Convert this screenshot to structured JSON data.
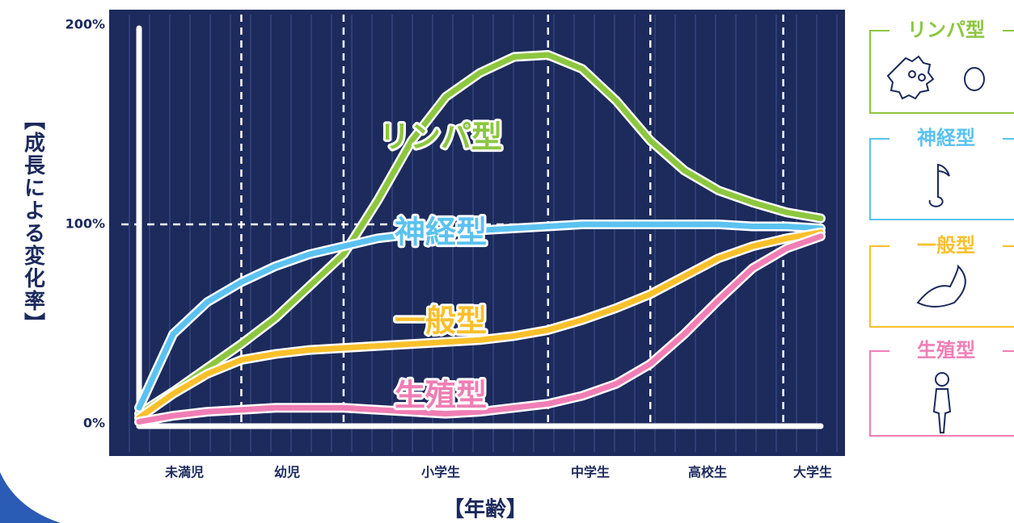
{
  "chart_data": {
    "type": "line",
    "ylabel": "【成長による変化率】",
    "xlabel": "【年齢】",
    "categories": [
      "未満児",
      "幼児",
      "小学生",
      "中学生",
      "高校生",
      "大学生"
    ],
    "x": [
      0,
      1,
      2,
      3,
      4,
      5,
      6,
      7,
      8,
      9,
      10,
      11,
      12,
      13,
      14,
      15,
      16,
      17,
      18,
      19,
      20
    ],
    "xlim": [
      0,
      20
    ],
    "xticks": [
      3,
      6,
      12,
      15,
      18.9
    ],
    "ylim": [
      0,
      200
    ],
    "yticks": [
      {
        "value": 0,
        "label": "0%"
      },
      {
        "value": 100,
        "label": "100%"
      },
      {
        "value": 200,
        "label": "200%"
      }
    ],
    "series": [
      {
        "name": "リンパ型",
        "color": "#8dc63f",
        "values": [
          5,
          16,
          28,
          40,
          53,
          69,
          85,
          112,
          142,
          164,
          176,
          184,
          185,
          178,
          162,
          142,
          127,
          117,
          111,
          106,
          103
        ]
      },
      {
        "name": "神経型",
        "color": "#5bc2f0",
        "values": [
          8,
          45,
          61,
          71,
          79,
          85,
          89,
          93,
          95,
          96,
          97,
          98,
          99,
          100,
          100,
          100,
          100,
          100,
          99,
          99,
          98
        ]
      },
      {
        "name": "一般型",
        "color": "#f9c02b",
        "values": [
          3,
          15,
          25,
          32,
          35,
          37,
          38,
          39,
          40,
          41,
          42,
          44,
          47,
          52,
          58,
          65,
          74,
          83,
          89,
          93,
          96
        ]
      },
      {
        "name": "生殖型",
        "color": "#f07eb5",
        "values": [
          1,
          4,
          6,
          7,
          8,
          8,
          8,
          7,
          6,
          5,
          6,
          8,
          10,
          14,
          20,
          30,
          45,
          62,
          78,
          88,
          94
        ]
      }
    ]
  }
}
